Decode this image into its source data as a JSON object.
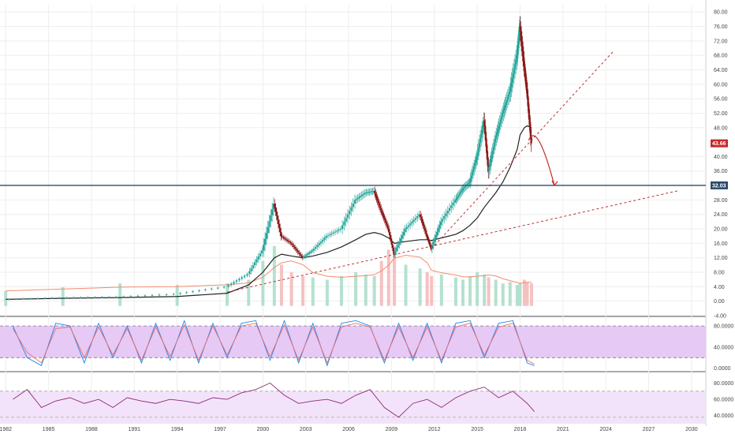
{
  "colors": {
    "up": "#26a69a",
    "down": "#8b1a1a",
    "volume_up": "#a8dcc8",
    "volume_down": "#f4b6b6",
    "price_badge": "#c62828",
    "level_badge": "#2c4a6e",
    "level_line": "#2c4a6e",
    "trendline": "#b71c1c",
    "forecast_arrow": "#c62828",
    "ma_long": "#222222",
    "ma_volume": "#f28c6c",
    "stoch_k": "#1e88e5",
    "stoch_d": "#ef6c6c",
    "stoch_band": "#e6c9f5",
    "rsi_line": "#8e2a7a",
    "rsi_band": "#f3e3fa",
    "grid": "#eeeeee",
    "axis_text": "#444444"
  },
  "markers": {
    "last_price": "43.66",
    "support_level": "32.03"
  },
  "price_axis_ticks": [
    "-4.00",
    "0.00",
    "4.00",
    "8.00",
    "12.00",
    "16.00",
    "20.00",
    "24.00",
    "28.00",
    "36.00",
    "40.00",
    "48.00",
    "52.00",
    "56.00",
    "60.00",
    "64.00",
    "68.00",
    "72.00",
    "76.00",
    "80.00"
  ],
  "stoch_axis_ticks": [
    "80.0000",
    "40.0000",
    "0.0000"
  ],
  "rsi_axis_ticks": [
    "80.0000",
    "60.0000",
    "40.0000"
  ],
  "time_axis_ticks": [
    "1982",
    "1985",
    "1988",
    "1991",
    "1994",
    "1997",
    "2000",
    "2003",
    "2006",
    "2009",
    "2012",
    "2015",
    "2018",
    "2021",
    "2024",
    "2027",
    "2030"
  ],
  "chart_data": [
    {
      "type": "candlestick",
      "panel": "price",
      "ylim": [
        -4,
        82
      ],
      "x": [
        1982.0,
        1986.0,
        1990.0,
        1994.0,
        1997.5,
        1999.0,
        2000.0,
        2000.8,
        2001.3,
        2002.0,
        2002.8,
        2003.5,
        2004.5,
        2005.5,
        2006.5,
        2007.2,
        2007.8,
        2008.3,
        2008.8,
        2009.2,
        2010.0,
        2011.0,
        2011.5,
        2011.8,
        2012.5,
        2013.5,
        2014.0,
        2014.5,
        2015.0,
        2015.5,
        2015.8,
        2016.3,
        2016.8,
        2017.3,
        2017.8,
        2018.0,
        2018.3,
        2018.5,
        2018.8
      ],
      "values": [
        0.5,
        1.0,
        1.2,
        2.0,
        4.0,
        7.5,
        14.0,
        27.0,
        18.0,
        16.0,
        12.0,
        14.0,
        18.0,
        20.0,
        28.0,
        30.0,
        30.5,
        25.0,
        20.0,
        13.0,
        20.0,
        24.0,
        18.0,
        14.5,
        22.0,
        28.0,
        31.0,
        33.0,
        40.0,
        50.0,
        36.0,
        45.0,
        52.0,
        58.0,
        68.0,
        76.0,
        65.0,
        58.0,
        43.66
      ],
      "volume_ylim": [
        0,
        100
      ],
      "volume": [
        20,
        25,
        30,
        28,
        30,
        35,
        60,
        80,
        55,
        45,
        40,
        38,
        35,
        40,
        45,
        42,
        40,
        60,
        75,
        80,
        55,
        50,
        45,
        40,
        42,
        38,
        35,
        40,
        45,
        42,
        38,
        35,
        30,
        32,
        28,
        30,
        35,
        32,
        30
      ],
      "ma_long": [
        0.5,
        0.8,
        1.0,
        1.3,
        2.2,
        4.5,
        8.0,
        12.0,
        13.0,
        12.5,
        12.0,
        12.5,
        13.5,
        15.0,
        17.0,
        18.5,
        19.0,
        18.5,
        17.5,
        16.0,
        16.5,
        17.0,
        17.0,
        16.8,
        17.5,
        18.5,
        19.5,
        21.0,
        23.0,
        26.0,
        27.5,
        30.0,
        33.0,
        37.0,
        42.0,
        46.0,
        48.0,
        48.5,
        48.0
      ]
    },
    {
      "type": "line",
      "panel": "stochastic",
      "ylim": [
        -5,
        95
      ],
      "x": [
        1982.5,
        1983.5,
        1984.5,
        1985.5,
        1986.5,
        1987.5,
        1988.5,
        1989.5,
        1990.5,
        1991.5,
        1992.5,
        1993.5,
        1994.5,
        1995.5,
        1996.5,
        1997.5,
        1998.5,
        1999.5,
        2000.5,
        2001.5,
        2002.5,
        2003.5,
        2004.5,
        2005.5,
        2006.5,
        2007.5,
        2008.5,
        2009.5,
        2010.5,
        2011.5,
        2012.5,
        2013.5,
        2014.5,
        2015.5,
        2016.5,
        2017.5,
        2018.5,
        2019.0
      ],
      "series": [
        {
          "values": [
            80,
            20,
            5,
            85,
            80,
            10,
            85,
            20,
            80,
            10,
            85,
            15,
            90,
            10,
            85,
            20,
            85,
            90,
            15,
            90,
            10,
            85,
            5,
            85,
            90,
            80,
            10,
            85,
            15,
            85,
            10,
            85,
            90,
            20,
            85,
            90,
            10,
            5
          ]
        },
        {
          "values": [
            75,
            30,
            10,
            75,
            78,
            20,
            78,
            25,
            75,
            15,
            78,
            22,
            82,
            15,
            80,
            25,
            80,
            85,
            22,
            82,
            15,
            78,
            10,
            78,
            85,
            78,
            15,
            78,
            20,
            78,
            15,
            78,
            85,
            25,
            78,
            85,
            15,
            8
          ]
        }
      ]
    },
    {
      "type": "line",
      "panel": "rsi",
      "ylim": [
        32,
        92
      ],
      "x": [
        1982.5,
        1983.5,
        1984.5,
        1985.5,
        1986.5,
        1987.5,
        1988.5,
        1989.5,
        1990.5,
        1991.5,
        1992.5,
        1993.5,
        1994.5,
        1995.5,
        1996.5,
        1997.5,
        1998.5,
        1999.5,
        2000.5,
        2001.5,
        2002.5,
        2003.5,
        2004.5,
        2005.5,
        2006.5,
        2007.5,
        2008.5,
        2009.5,
        2010.5,
        2011.5,
        2012.5,
        2013.5,
        2014.5,
        2015.5,
        2016.5,
        2017.5,
        2018.5,
        2019.0
      ],
      "series": [
        {
          "values": [
            60,
            72,
            50,
            58,
            62,
            55,
            60,
            50,
            62,
            58,
            55,
            60,
            58,
            55,
            62,
            60,
            68,
            72,
            80,
            65,
            55,
            58,
            60,
            55,
            65,
            72,
            50,
            38,
            55,
            60,
            50,
            62,
            70,
            75,
            62,
            70,
            55,
            45
          ]
        }
      ]
    }
  ]
}
